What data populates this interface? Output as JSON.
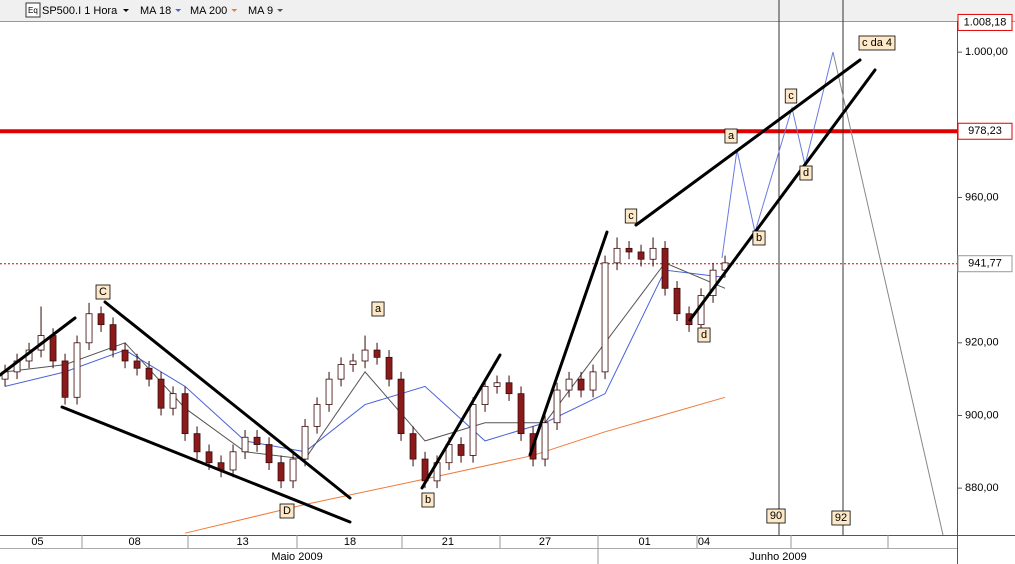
{
  "chart_data": {
    "type": "candlestick",
    "title": "SP500.I 1 Hora",
    "open": [
      910,
      912,
      915,
      918,
      922,
      915,
      905,
      920,
      928,
      925,
      918,
      915,
      913,
      910,
      902,
      906,
      895,
      890,
      887,
      885,
      890,
      894,
      892,
      887,
      882,
      888,
      897,
      903,
      910,
      914,
      915,
      918,
      916,
      910,
      895,
      888,
      882,
      887,
      892,
      889,
      903,
      908,
      909,
      906,
      895,
      888,
      898,
      907,
      910,
      907,
      912,
      942,
      946,
      945,
      943,
      946,
      935,
      928,
      925,
      933,
      940
    ],
    "high": [
      914,
      917,
      920,
      930,
      924,
      917,
      922,
      931,
      930,
      927,
      920,
      917,
      915,
      912,
      908,
      908,
      897,
      892,
      889,
      892,
      896,
      896,
      894,
      889,
      890,
      899,
      905,
      912,
      916,
      917,
      922,
      920,
      918,
      912,
      897,
      890,
      889,
      894,
      894,
      905,
      910,
      911,
      911,
      908,
      897,
      900,
      909,
      912,
      912,
      914,
      944,
      949,
      948,
      947,
      949,
      948,
      937,
      930,
      935,
      942,
      944
    ],
    "low": [
      908,
      910,
      913,
      916,
      913,
      903,
      903,
      918,
      923,
      916,
      913,
      911,
      908,
      900,
      900,
      893,
      888,
      885,
      883,
      883,
      888,
      890,
      885,
      880,
      880,
      886,
      895,
      901,
      908,
      912,
      913,
      914,
      908,
      893,
      886,
      880,
      880,
      885,
      887,
      887,
      901,
      906,
      904,
      893,
      886,
      886,
      896,
      905,
      905,
      905,
      910,
      940,
      943,
      941,
      941,
      933,
      926,
      923,
      923,
      931,
      938
    ],
    "close": [
      912,
      915,
      918,
      922,
      915,
      905,
      920,
      928,
      925,
      918,
      915,
      913,
      910,
      902,
      906,
      895,
      890,
      887,
      885,
      890,
      894,
      892,
      887,
      882,
      888,
      897,
      903,
      910,
      914,
      915,
      918,
      916,
      910,
      895,
      888,
      882,
      887,
      892,
      889,
      903,
      908,
      909,
      906,
      895,
      888,
      898,
      907,
      910,
      907,
      912,
      942,
      946,
      945,
      943,
      946,
      935,
      928,
      925,
      933,
      940,
      942
    ],
    "up_color": "#ffffff",
    "down_color": "#8b1a1a",
    "xlim": [
      -0.42,
      79.33
    ],
    "xticks": [
      {
        "value": 2.7,
        "label": "05"
      },
      {
        "value": 10.8,
        "label": "08"
      },
      {
        "value": 19.8,
        "label": "13"
      },
      {
        "value": 28.75,
        "label": "18"
      },
      {
        "value": 36.9,
        "label": "21"
      },
      {
        "value": 45,
        "label": "27"
      },
      {
        "value": 53.3,
        "label": "01"
      },
      {
        "value": 58.25,
        "label": "04"
      }
    ],
    "ylim": [
      867.1,
      1008.3
    ],
    "yticks": [
      {
        "value": 880,
        "label": "880,00"
      },
      {
        "value": 900,
        "label": "900,00"
      },
      {
        "value": 920,
        "label": "920,00"
      },
      {
        "value": 960,
        "label": "960,00"
      },
      {
        "value": 1000,
        "label": "1.000,00"
      }
    ],
    "series": [
      {
        "name": "MA 18",
        "color": "#4a63d8",
        "x": [
          0,
          5,
          10,
          15,
          20,
          25,
          30,
          35,
          40,
          45,
          50,
          55,
          60
        ],
        "values": [
          908,
          912,
          918,
          908,
          893,
          890,
          903,
          908,
          893,
          898,
          906,
          940,
          938
        ]
      },
      {
        "name": "MA 200",
        "color": "#f07a3a",
        "x": [
          15,
          25,
          35,
          44,
          50,
          60
        ],
        "values": [
          867.6,
          875.5,
          882.5,
          889,
          895.5,
          905
        ]
      },
      {
        "name": "MA 9",
        "color": "#555555",
        "x": [
          0,
          5,
          10,
          15,
          20,
          25,
          30,
          35,
          40,
          45,
          50,
          55,
          60
        ],
        "values": [
          912,
          914,
          920,
          902,
          890,
          888,
          912,
          893,
          898,
          898,
          920,
          942,
          935
        ]
      }
    ],
    "hlines": [
      {
        "value": 978.23,
        "label": "978,23",
        "color": "#e00000",
        "style": "solid"
      },
      {
        "value": 941.77,
        "label": "941,77",
        "color": "#e00000",
        "style": "dotted"
      }
    ],
    "last_price": {
      "value": 1008.18,
      "label": "1.008,18"
    },
    "months": [
      "Maio 2009",
      "Junho 2009"
    ],
    "annotations": [
      "C",
      "D",
      "a",
      "b",
      "c",
      "d",
      "a",
      "b",
      "c",
      "d",
      "c da 4",
      "90",
      "92"
    ]
  }
}
